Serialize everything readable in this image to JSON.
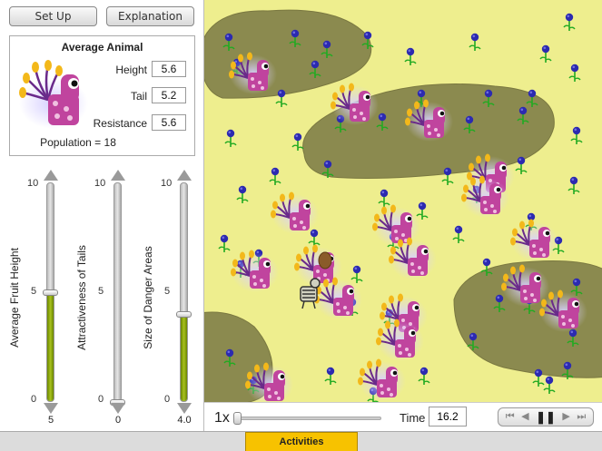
{
  "toolbar": {
    "setup_label": "Set Up",
    "explanation_label": "Explanation"
  },
  "average_animal": {
    "title": "Average Animal",
    "traits": [
      {
        "label": "Height",
        "value": "5.6"
      },
      {
        "label": "Tail",
        "value": "5.2"
      },
      {
        "label": "Resistance",
        "value": "5.6"
      }
    ],
    "population": "Population = 18"
  },
  "sliders": [
    {
      "label": "Average Fruit Height",
      "value": "5",
      "fraction": 0.5,
      "max": "10",
      "mid": "5",
      "min": "0",
      "fill_color": "#8aa80a"
    },
    {
      "label": "Attractiveness of Tails",
      "value": "0",
      "fraction": 0.0,
      "max": "10",
      "mid": "5",
      "min": "0",
      "fill_color": "#8aa80a"
    },
    {
      "label": "Size of Danger Areas",
      "value": "4.0",
      "fraction": 0.4,
      "max": "10",
      "mid": "5",
      "min": "0",
      "fill_color": "#8aa80a"
    }
  ],
  "controls": {
    "speed": "1x",
    "speed_fraction": 0.0,
    "time_label": "Time",
    "time_value": "16.2",
    "playback_icons": [
      "skip-to-start-icon",
      "step-back-icon",
      "pause-icon",
      "step-forward-icon",
      "skip-to-end-icon"
    ]
  },
  "bottom_bar": {
    "activities_label": "Activities"
  },
  "colors": {
    "field": "#eeee8e",
    "danger_area": "#8b8a4f",
    "animal_body": "#c0449e",
    "accent": "#f7c200",
    "flower": "#2c2ab0",
    "stem": "#22aa22"
  },
  "icons": {
    "animal": "creature-icon",
    "flower": "flower-icon",
    "skeleton": "skeleton-icon",
    "egg": "egg-icon"
  }
}
